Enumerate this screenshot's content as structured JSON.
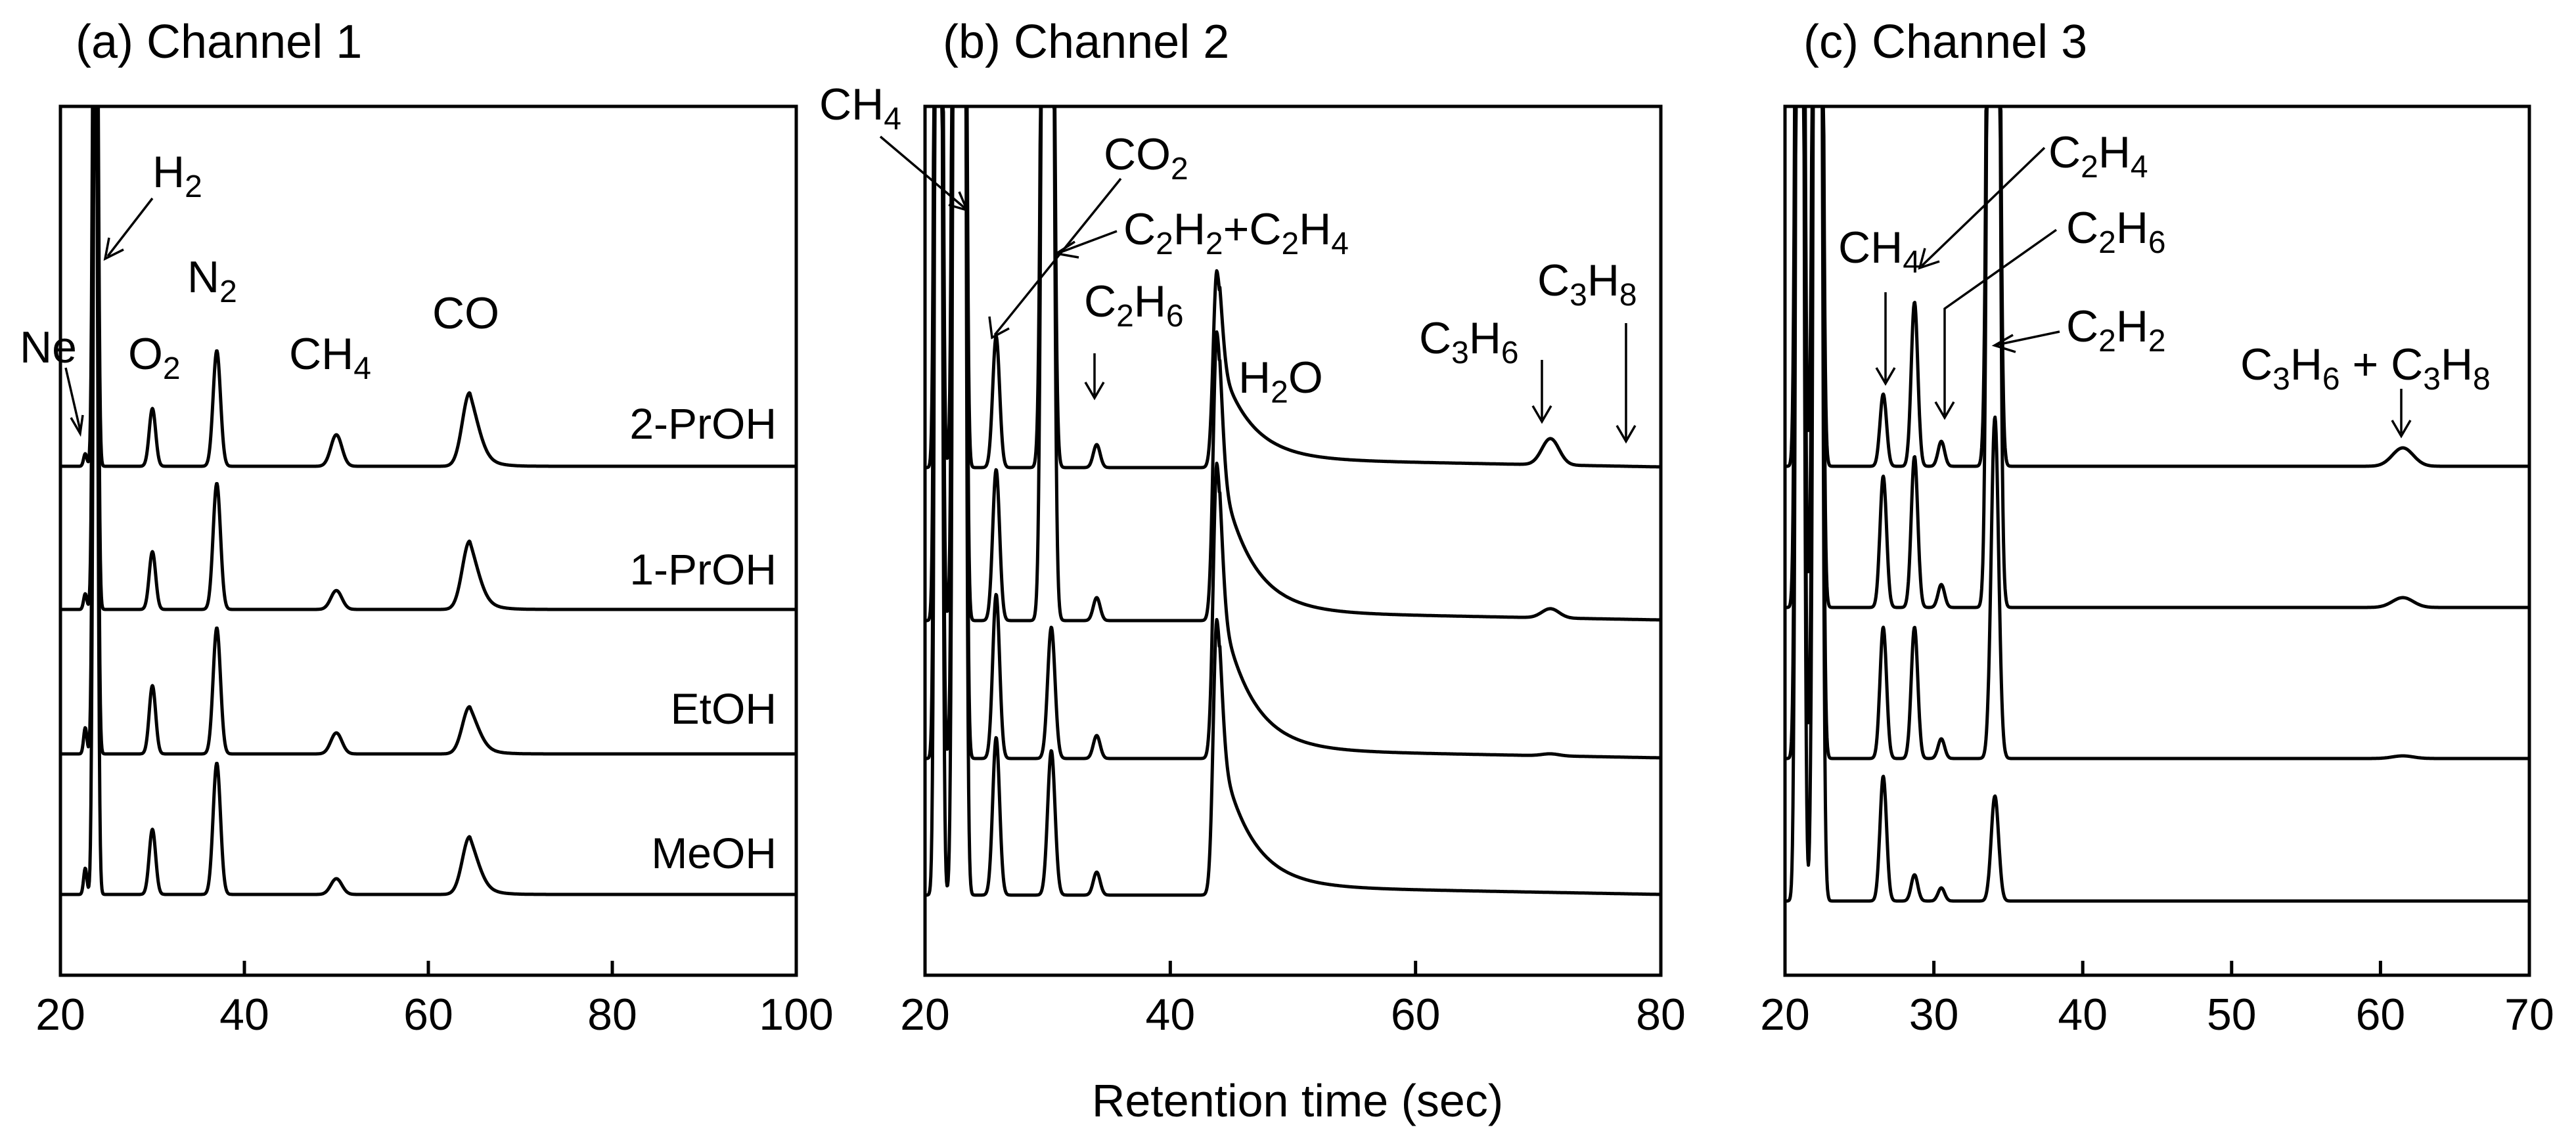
{
  "figure": {
    "xlabel": "Retention time (sec)"
  },
  "chart_data": [
    {
      "type": "line",
      "title": "(a) Channel 1",
      "xlabel": "",
      "ylabel": "",
      "xlim": [
        20,
        100
      ],
      "xticks": [
        20,
        40,
        60,
        80,
        100
      ],
      "series_names": [
        "MeOH",
        "EtOH",
        "1-PrOH",
        "2-PrOH"
      ],
      "peaks": [
        {
          "label": "Ne",
          "x": 22.7
        },
        {
          "label": "H2",
          "x": 23.8
        },
        {
          "label": "O2",
          "x": 30.0
        },
        {
          "label": "N2",
          "x": 37.0
        },
        {
          "label": "CH4",
          "x": 50.0
        },
        {
          "label": "CO",
          "x": 64.5
        }
      ],
      "peak_heights": {
        "MeOH": [
          0.25,
          9.9,
          0.62,
          1.25,
          0.15,
          0.55
        ],
        "EtOH": [
          0.25,
          9.9,
          0.65,
          1.2,
          0.2,
          0.45
        ],
        "1-PrOH": [
          0.15,
          9.9,
          0.55,
          1.2,
          0.18,
          0.65
        ],
        "2-PrOH": [
          0.12,
          9.9,
          0.55,
          1.1,
          0.3,
          0.7
        ]
      }
    },
    {
      "type": "line",
      "title": "(b) Channel 2",
      "xlabel": "",
      "ylabel": "",
      "xlim": [
        20,
        80
      ],
      "xticks": [
        20,
        40,
        60,
        80
      ],
      "series_names": [
        "MeOH",
        "EtOH",
        "1-PrOH",
        "2-PrOH"
      ],
      "peaks": [
        {
          "label": "CH4",
          "x": 23.0
        },
        {
          "label": "CO2",
          "x": 25.8
        },
        {
          "label": "C2H2+C2H4",
          "x": 30.0
        },
        {
          "label": "C2H6",
          "x": 34.0
        },
        {
          "label": "H2O",
          "x": 43.8
        },
        {
          "label": "C3H6",
          "x": 71.0
        },
        {
          "label": "C3H8",
          "x": 77.5
        }
      ]
    },
    {
      "type": "line",
      "title": "(c) Channel 3",
      "xlabel": "",
      "ylabel": "",
      "xlim": [
        20,
        70
      ],
      "xticks": [
        20,
        30,
        40,
        50,
        60,
        70
      ],
      "series_names": [
        "MeOH",
        "EtOH",
        "1-PrOH",
        "2-PrOH"
      ],
      "peaks": [
        {
          "label": "CH4",
          "x": 26.6
        },
        {
          "label": "C2H4",
          "x": 28.7
        },
        {
          "label": "C2H6",
          "x": 30.5
        },
        {
          "label": "C2H2",
          "x": 34.0
        },
        {
          "label": "C3H6 + C3H8",
          "x": 61.5
        }
      ]
    }
  ]
}
